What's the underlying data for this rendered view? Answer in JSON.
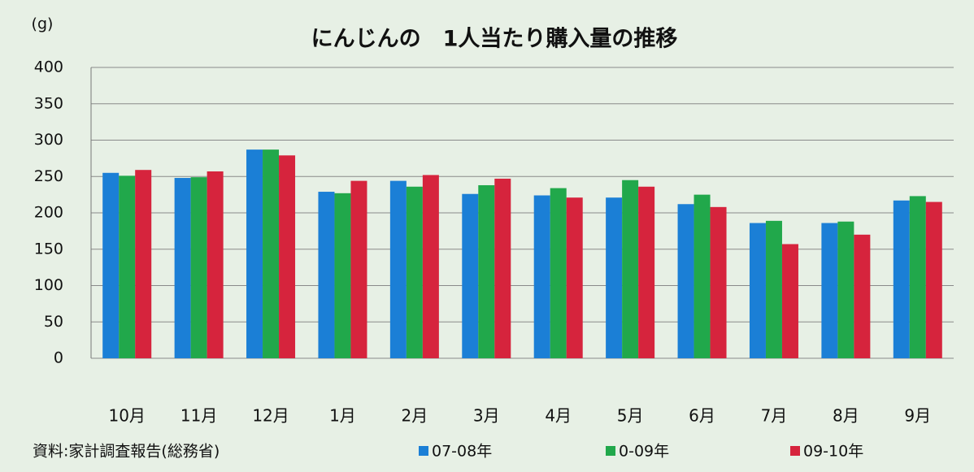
{
  "chart_data": {
    "type": "bar",
    "title": "にんじんの　1人当たり購入量の推移",
    "y_axis_label": "(g)",
    "source": "資料:家計調査報告(総務省)",
    "categories": [
      "10月",
      "11月",
      "12月",
      "1月",
      "2月",
      "3月",
      "4月",
      "5月",
      "6月",
      "7月",
      "8月",
      "9月"
    ],
    "series": [
      {
        "name": "07-08年",
        "color": "#1b7fd6",
        "values": [
          255,
          248,
          287,
          229,
          244,
          226,
          224,
          221,
          212,
          186,
          186,
          217
        ]
      },
      {
        "name": "0-09年",
        "color": "#21a84b",
        "values": [
          251,
          249,
          287,
          227,
          236,
          238,
          234,
          245,
          225,
          189,
          188,
          223
        ]
      },
      {
        "name": "09-10年",
        "color": "#d6243d",
        "values": [
          259,
          257,
          279,
          244,
          252,
          247,
          221,
          236,
          208,
          157,
          170,
          215
        ]
      }
    ],
    "ylim": [
      0,
      400
    ],
    "yticks": [
      0,
      50,
      100,
      150,
      200,
      250,
      300,
      350,
      400
    ],
    "grid": true
  }
}
